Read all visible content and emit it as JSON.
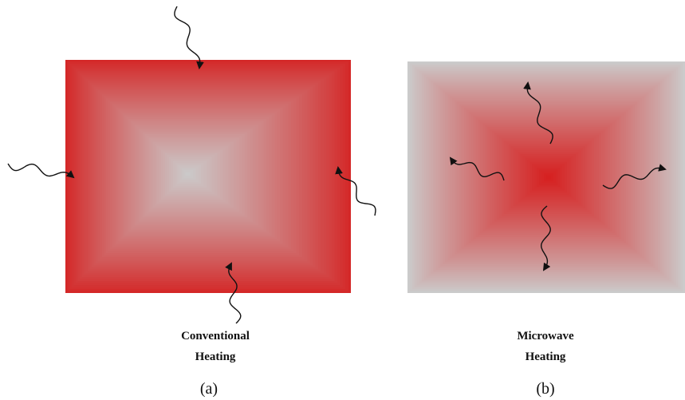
{
  "panels": [
    {
      "label_lines": [
        "Conventional",
        "Heating"
      ],
      "caption": "(a)"
    },
    {
      "label_lines": [
        "Microwave",
        "Heating"
      ],
      "caption": "(b)"
    }
  ]
}
